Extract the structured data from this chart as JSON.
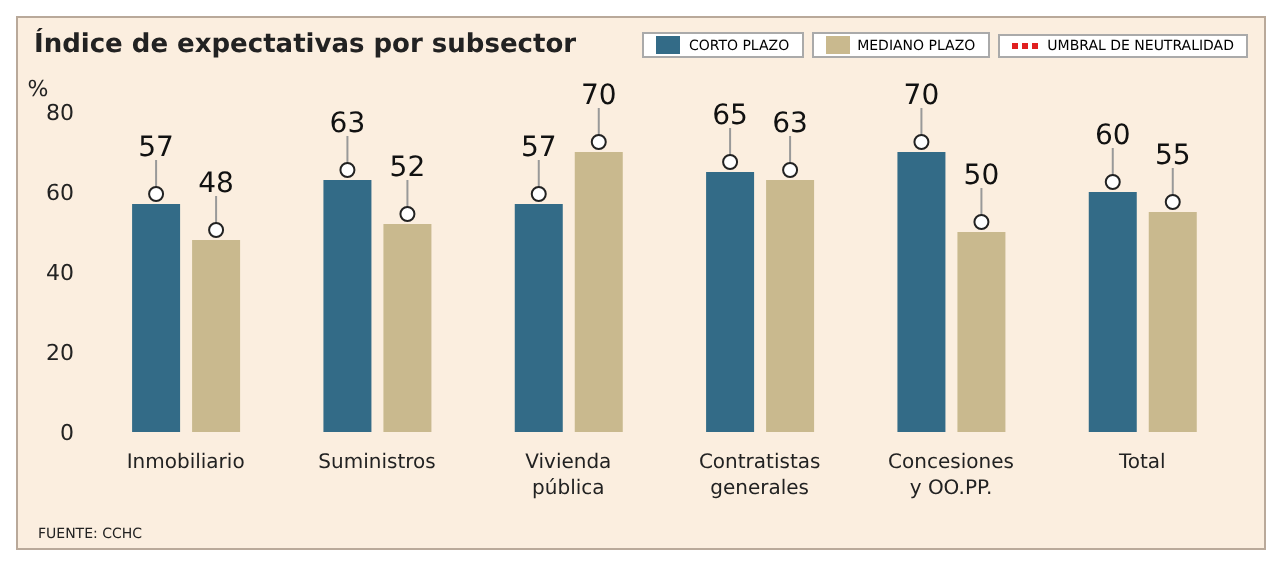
{
  "chart_data": {
    "type": "bar",
    "title": "Índice de expectativas por subsector",
    "ylabel": "%",
    "categories": [
      "Inmobiliario",
      "Suministros",
      "Vivienda pública",
      "Contratistas generales",
      "Concesiones y OO.PP.",
      "Total"
    ],
    "series": [
      {
        "name": "CORTO PLAZO",
        "color": "#336b87",
        "values": [
          57,
          63,
          57,
          65,
          70,
          60
        ]
      },
      {
        "name": "MEDIANO PLAZO",
        "color": "#c9b98e",
        "values": [
          48,
          52,
          70,
          63,
          50,
          55
        ]
      }
    ],
    "ylim": [
      0,
      80
    ],
    "yticks": [
      0,
      20,
      40,
      60,
      80
    ],
    "grid": false,
    "legend": "top right",
    "data_labels": true,
    "annotations": [
      "UMBRAL DE NEUTRALIDAD",
      "FUENTE: CCHC"
    ]
  }
}
